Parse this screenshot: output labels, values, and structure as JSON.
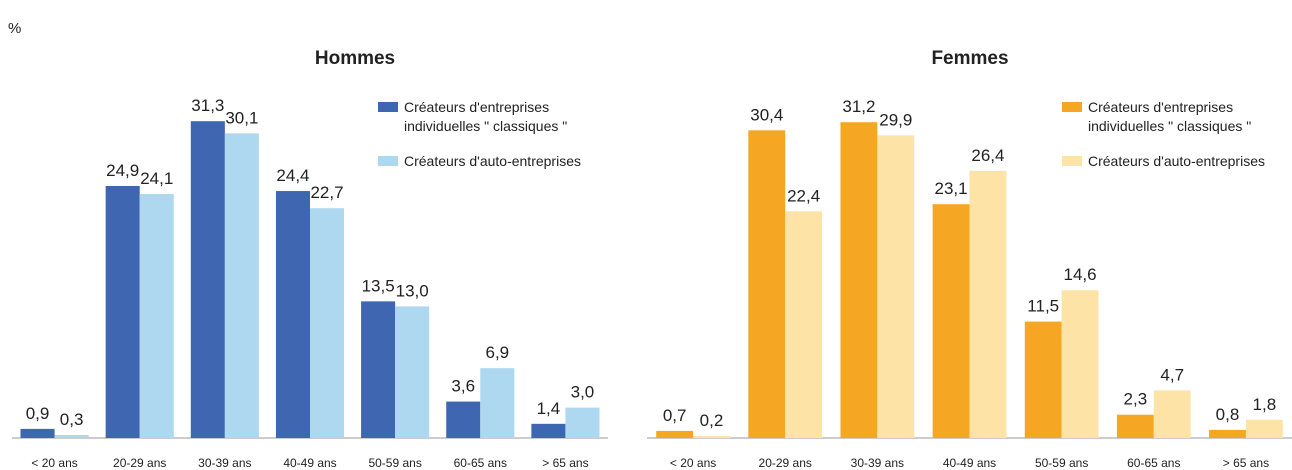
{
  "unit_label": "%",
  "chart_data": [
    {
      "type": "bar",
      "title": "Hommes",
      "categories": [
        "< 20 ans",
        "20-29 ans",
        "30-39 ans",
        "40-49 ans",
        "50-59 ans",
        "60-65 ans",
        "> 65 ans"
      ],
      "series": [
        {
          "name": "Créateurs d'entreprises individuelles \" classiques \"",
          "color": "#3f67b1",
          "values": [
            0.9,
            24.9,
            31.3,
            24.4,
            13.5,
            3.6,
            1.4
          ],
          "value_labels": [
            "0,9",
            "24,9",
            "31,3",
            "24,4",
            "13,5",
            "3,6",
            "1,4"
          ]
        },
        {
          "name": "Créateurs d'auto-entreprises",
          "color": "#add8f0",
          "values": [
            0.3,
            24.1,
            30.1,
            22.7,
            13.0,
            6.9,
            3.0
          ],
          "value_labels": [
            "0,3",
            "24,1",
            "30,1",
            "22,7",
            "13,0",
            "6,9",
            "3,0"
          ]
        }
      ],
      "ylim": [
        0,
        33
      ]
    },
    {
      "type": "bar",
      "title": "Femmes",
      "categories": [
        "< 20 ans",
        "20-29 ans",
        "30-39 ans",
        "40-49 ans",
        "50-59 ans",
        "60-65 ans",
        "> 65 ans"
      ],
      "series": [
        {
          "name": "Créateurs d'entreprises individuelles \" classiques \"",
          "color": "#f5a623",
          "values": [
            0.7,
            30.4,
            31.2,
            23.1,
            11.5,
            2.3,
            0.8
          ],
          "value_labels": [
            "0,7",
            "30,4",
            "31,2",
            "23,1",
            "11,5",
            "2,3",
            "0,8"
          ]
        },
        {
          "name": "Créateurs d'auto-entreprises",
          "color": "#fde4a6",
          "values": [
            0.2,
            22.4,
            29.9,
            26.4,
            14.6,
            4.7,
            1.8
          ],
          "value_labels": [
            "0,2",
            "22,4",
            "29,9",
            "26,4",
            "14,6",
            "4,7",
            "1,8"
          ]
        }
      ],
      "ylim": [
        0,
        33
      ]
    }
  ]
}
